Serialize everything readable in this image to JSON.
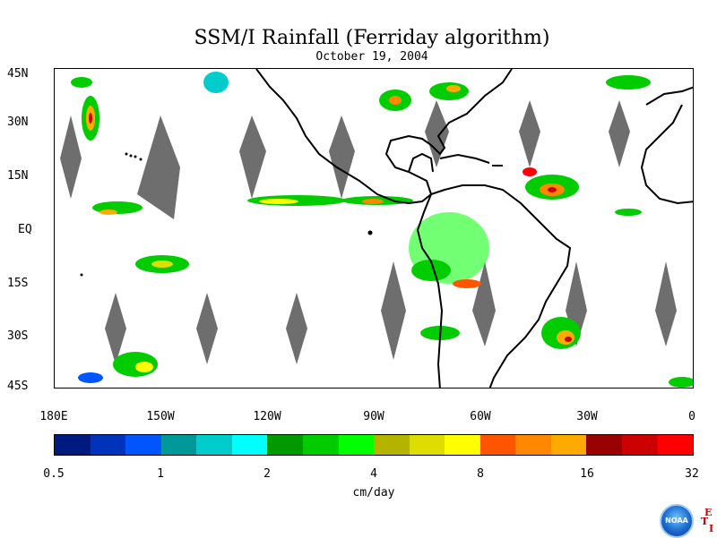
{
  "title": "SSM/I Rainfall (Ferriday algorithm)",
  "subtitle": "October 19, 2004",
  "lat_labels": [
    "45N",
    "30N",
    "15N",
    "EQ",
    "15S",
    "30S",
    "45S"
  ],
  "lon_labels": [
    "180E",
    "150W",
    "120W",
    "90W",
    "60W",
    "30W",
    "0"
  ],
  "colorbar": {
    "colors": [
      "#001a80",
      "#0033bb",
      "#0055ff",
      "#009999",
      "#00cccc",
      "#00ffff",
      "#009900",
      "#00cc00",
      "#00ff00",
      "#b3b300",
      "#dddd00",
      "#ffff00",
      "#ff5500",
      "#ff8800",
      "#ffaa00",
      "#990000",
      "#cc0000",
      "#ff0000"
    ],
    "labels": [
      "0.5",
      "1",
      "2",
      "4",
      "8",
      "16",
      "32"
    ],
    "unit": "cm/day"
  },
  "logo": {
    "text": "NOAA",
    "letters": [
      "E",
      "T",
      "I"
    ]
  }
}
